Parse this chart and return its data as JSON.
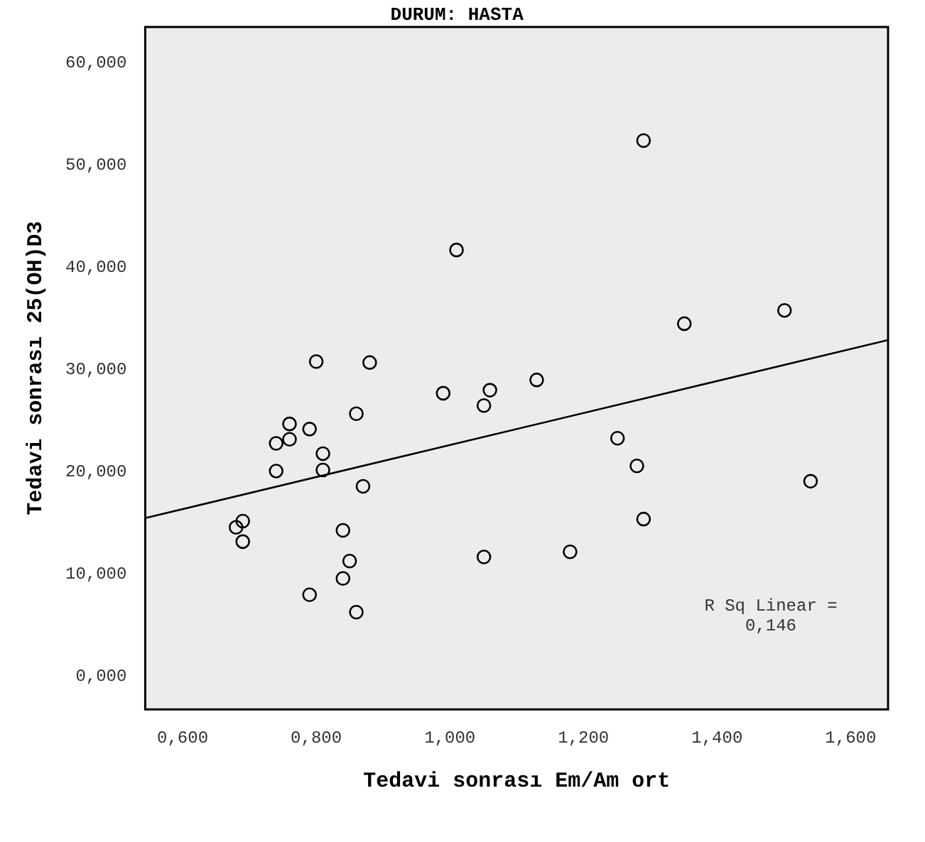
{
  "chart_data": {
    "type": "scatter",
    "title": "DURUM: HASTA",
    "xlabel": "Tedavi sonrası Em/Am ort",
    "ylabel": "Tedavi sonrası 25(OH)D3",
    "xlim": [
      0.544,
      1.656
    ],
    "ylim": [
      -3.2,
      63.5
    ],
    "xticks": [
      {
        "value": 0.6,
        "label": "0,600"
      },
      {
        "value": 0.8,
        "label": "0,800"
      },
      {
        "value": 1.0,
        "label": "1,000"
      },
      {
        "value": 1.2,
        "label": "1,200"
      },
      {
        "value": 1.4,
        "label": "1,400"
      },
      {
        "value": 1.6,
        "label": "1,600"
      }
    ],
    "yticks": [
      {
        "value": 0,
        "label": "0,000"
      },
      {
        "value": 10,
        "label": "10,000"
      },
      {
        "value": 20,
        "label": "20,000"
      },
      {
        "value": 30,
        "label": "30,000"
      },
      {
        "value": 40,
        "label": "40,000"
      },
      {
        "value": 50,
        "label": "50,000"
      },
      {
        "value": 60,
        "label": "60,000"
      }
    ],
    "grid": false,
    "legend": false,
    "series": [
      {
        "marker": "circle",
        "color": "#000000",
        "x": [
          1.01,
          0.8,
          0.88,
          0.99,
          1.06,
          1.051,
          1.13,
          0.86,
          0.76,
          0.79,
          0.74,
          0.76,
          0.81,
          0.74,
          0.81,
          0.87,
          0.68,
          0.69,
          0.69,
          0.84,
          0.85,
          0.84,
          0.79,
          0.86,
          1.051,
          1.18,
          1.351,
          1.501,
          1.251,
          1.28,
          1.54,
          1.29,
          1.29
        ],
        "values": [
          41.7,
          30.8,
          30.7,
          27.7,
          28.0,
          26.5,
          29.0,
          25.7,
          24.7,
          24.2,
          22.8,
          23.2,
          21.8,
          20.1,
          20.2,
          18.6,
          14.6,
          15.2,
          13.2,
          14.3,
          11.3,
          9.6,
          8.0,
          6.3,
          11.7,
          12.2,
          34.5,
          35.8,
          23.3,
          20.6,
          19.1,
          15.4,
          52.4
        ]
      },
      {
        "type": "line",
        "color": "#000000",
        "x": [
          0.544,
          1.656
        ],
        "values": [
          15.5,
          32.9
        ]
      }
    ],
    "annotations": [
      "R Sq Linear = 0,146"
    ]
  }
}
